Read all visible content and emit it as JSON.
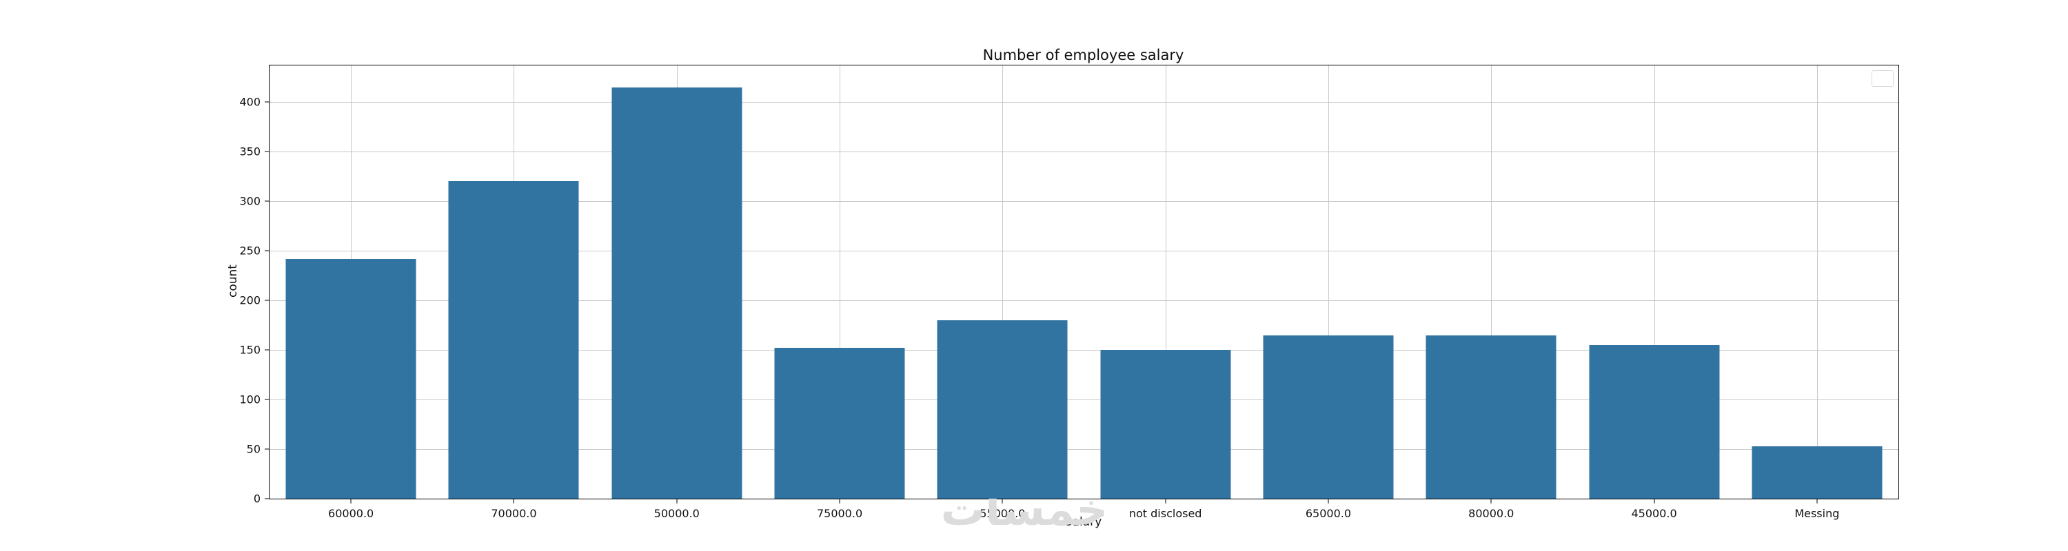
{
  "chart_data": {
    "type": "bar",
    "title": "Number of employee salary",
    "xlabel": "Salary",
    "ylabel": "count",
    "categories": [
      "60000.0",
      "70000.0",
      "50000.0",
      "75000.0",
      "55000.0",
      "not disclosed",
      "65000.0",
      "80000.0",
      "45000.0",
      "Messing"
    ],
    "values": [
      242,
      320,
      415,
      152,
      180,
      150,
      165,
      165,
      155,
      53
    ],
    "yticks": [
      0,
      50,
      100,
      150,
      200,
      250,
      300,
      350,
      400
    ],
    "ylim": [
      0,
      437
    ],
    "bar_color": "#3274A1",
    "grid": true,
    "grid_color": "#c8c8c8",
    "legend_position": "upper right",
    "legend_entries": []
  },
  "watermark": {
    "text": "خمسات"
  }
}
